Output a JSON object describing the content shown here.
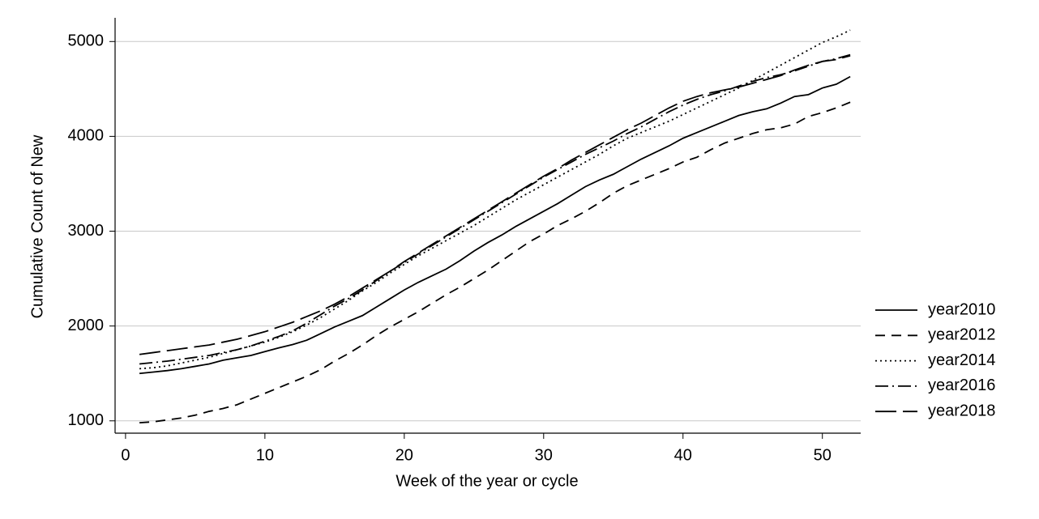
{
  "chart_data": {
    "type": "line",
    "xlabel": "Week of the year or cycle",
    "ylabel": "Cumulative Count of New",
    "x": [
      1,
      2,
      3,
      4,
      5,
      6,
      7,
      8,
      9,
      10,
      11,
      12,
      13,
      14,
      15,
      16,
      17,
      18,
      19,
      20,
      21,
      22,
      23,
      24,
      25,
      26,
      27,
      28,
      29,
      30,
      31,
      32,
      33,
      34,
      35,
      36,
      37,
      38,
      39,
      40,
      41,
      42,
      43,
      44,
      45,
      46,
      47,
      48,
      49,
      50,
      51,
      52
    ],
    "xlim": [
      -0.75,
      52.75
    ],
    "xticks": [
      0,
      10,
      20,
      30,
      40,
      50
    ],
    "ylim": [
      870,
      5250
    ],
    "yticks": [
      1000,
      2000,
      3000,
      4000,
      5000
    ],
    "grid": true,
    "legend": "right",
    "series": [
      {
        "name": "year2010",
        "color": "#000000",
        "style": "solid",
        "values": [
          1500,
          1515,
          1530,
          1550,
          1575,
          1600,
          1640,
          1665,
          1690,
          1730,
          1770,
          1805,
          1850,
          1920,
          1990,
          2050,
          2110,
          2200,
          2290,
          2380,
          2460,
          2530,
          2600,
          2690,
          2790,
          2880,
          2960,
          3050,
          3130,
          3210,
          3290,
          3380,
          3470,
          3540,
          3600,
          3680,
          3760,
          3830,
          3900,
          3980,
          4040,
          4100,
          4160,
          4220,
          4260,
          4290,
          4350,
          4420,
          4440,
          4510,
          4550,
          4630
        ]
      },
      {
        "name": "year2012",
        "color": "#000000",
        "style": "dashed",
        "values": [
          980,
          990,
          1010,
          1030,
          1060,
          1100,
          1130,
          1170,
          1230,
          1290,
          1350,
          1410,
          1470,
          1540,
          1630,
          1710,
          1800,
          1900,
          1990,
          2070,
          2150,
          2240,
          2330,
          2410,
          2500,
          2590,
          2690,
          2790,
          2890,
          2970,
          3060,
          3130,
          3210,
          3300,
          3400,
          3480,
          3540,
          3600,
          3660,
          3730,
          3780,
          3860,
          3930,
          3980,
          4030,
          4070,
          4090,
          4130,
          4210,
          4250,
          4300,
          4360
        ]
      },
      {
        "name": "year2014",
        "color": "#000000",
        "style": "dotted",
        "values": [
          1550,
          1560,
          1580,
          1610,
          1640,
          1670,
          1710,
          1750,
          1790,
          1830,
          1880,
          1940,
          2010,
          2090,
          2180,
          2270,
          2370,
          2460,
          2560,
          2650,
          2740,
          2820,
          2900,
          2980,
          3060,
          3150,
          3240,
          3330,
          3410,
          3490,
          3570,
          3650,
          3730,
          3810,
          3900,
          3980,
          4040,
          4100,
          4160,
          4230,
          4300,
          4370,
          4440,
          4510,
          4590,
          4670,
          4750,
          4830,
          4910,
          4990,
          5050,
          5120
        ]
      },
      {
        "name": "year2016",
        "color": "#000000",
        "style": "dashdot",
        "values": [
          1600,
          1615,
          1630,
          1650,
          1670,
          1690,
          1720,
          1750,
          1790,
          1840,
          1890,
          1950,
          2030,
          2120,
          2210,
          2290,
          2380,
          2480,
          2580,
          2670,
          2760,
          2850,
          2940,
          3030,
          3120,
          3210,
          3300,
          3390,
          3480,
          3570,
          3650,
          3730,
          3810,
          3880,
          3950,
          4030,
          4100,
          4180,
          4260,
          4330,
          4390,
          4440,
          4480,
          4530,
          4580,
          4620,
          4650,
          4690,
          4740,
          4790,
          4820,
          4860
        ]
      },
      {
        "name": "year2018",
        "color": "#000000",
        "style": "longdash",
        "values": [
          1700,
          1720,
          1740,
          1760,
          1780,
          1800,
          1830,
          1860,
          1900,
          1940,
          1990,
          2040,
          2100,
          2160,
          2230,
          2310,
          2400,
          2490,
          2580,
          2680,
          2770,
          2860,
          2950,
          3040,
          3130,
          3220,
          3310,
          3400,
          3490,
          3580,
          3660,
          3750,
          3830,
          3910,
          3990,
          4070,
          4140,
          4220,
          4300,
          4370,
          4420,
          4460,
          4490,
          4520,
          4560,
          4600,
          4640,
          4700,
          4750,
          4790,
          4810,
          4850
        ]
      }
    ]
  }
}
